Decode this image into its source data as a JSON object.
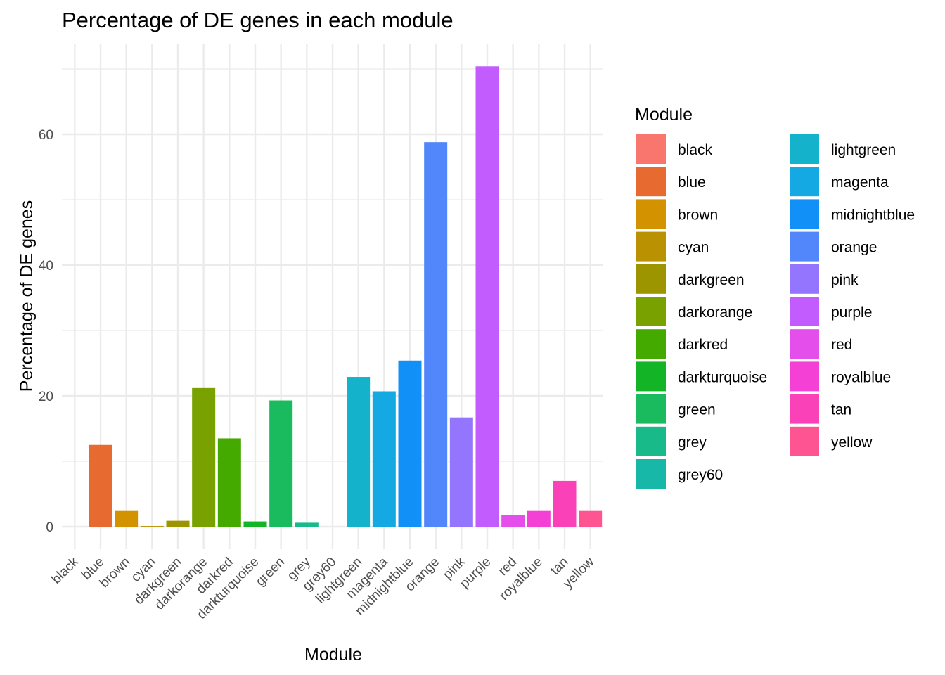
{
  "chart_data": {
    "type": "bar",
    "title": "Percentage of DE genes in each module",
    "xlabel": "Module",
    "ylabel": "Percentage of DE genes",
    "ylim": [
      -3.5,
      73.5
    ],
    "y_ticks": [
      0,
      20,
      40,
      60
    ],
    "grid": true,
    "legend": {
      "title": "Module",
      "placement": "right",
      "columns": 2
    },
    "categories": [
      "black",
      "blue",
      "brown",
      "cyan",
      "darkgreen",
      "darkorange",
      "darkred",
      "darkturquoise",
      "green",
      "grey",
      "grey60",
      "lightgreen",
      "magenta",
      "midnightblue",
      "orange",
      "pink",
      "purple",
      "red",
      "royalblue",
      "tan",
      "yellow"
    ],
    "values": [
      0,
      12.5,
      2.4,
      0.1,
      0.9,
      21.2,
      13.5,
      0.8,
      19.3,
      0.6,
      0,
      22.9,
      20.7,
      25.4,
      58.8,
      16.7,
      70.4,
      1.8,
      2.4,
      7.0,
      2.4
    ],
    "colors": [
      "#F8766D",
      "#E76B30",
      "#D39200",
      "#BA9100",
      "#9C9500",
      "#79A100",
      "#45AA00",
      "#14B427",
      "#1ABB5E",
      "#17BA88",
      "#17B8A8",
      "#15B2CC",
      "#14A9E3",
      "#1191F8",
      "#5286FB",
      "#9476FE",
      "#C35CFF",
      "#E44FEC",
      "#F540D6",
      "#FB41B8",
      "#FE5592"
    ]
  }
}
